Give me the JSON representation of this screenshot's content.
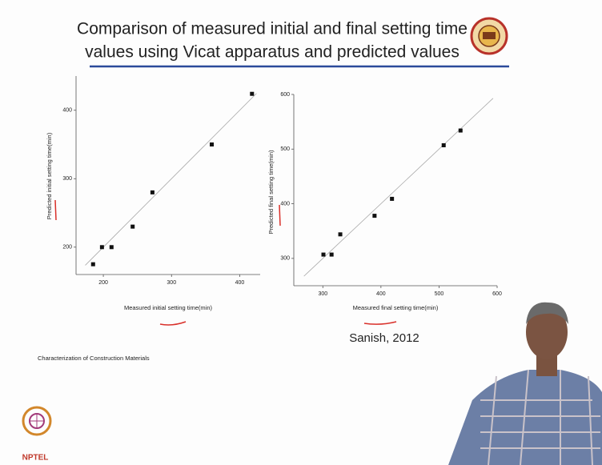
{
  "title": [
    "Comparison of measured initial and final setting time",
    "values using Vicat apparatus and predicted values"
  ],
  "footer": "Characterization of Construction Materials",
  "citation": "Sanish, 2012",
  "logo_text": "NPTEL",
  "chart_data": [
    {
      "type": "scatter",
      "x_label": "Measured initial setting time(min)",
      "y_label": "Predicted initial setting time(min)",
      "x": [
        185,
        198,
        212,
        243,
        272,
        359,
        418
      ],
      "values": [
        175,
        200,
        200,
        230,
        280,
        350,
        424
      ],
      "color": "#111111",
      "xlim": [
        160,
        430
      ],
      "ylim": [
        160,
        450
      ],
      "xticks": [
        200,
        300,
        400
      ],
      "yticks": [
        200,
        300,
        400
      ]
    },
    {
      "type": "scatter",
      "x_label": "Measured final setting time(min)",
      "y_label": "Predicted final setting time(min)",
      "x": [
        301,
        315,
        330,
        389,
        419,
        508,
        537
      ],
      "values": [
        307,
        307,
        344,
        378,
        409,
        507,
        534
      ],
      "color": "#111111",
      "xlim": [
        250,
        600
      ],
      "ylim": [
        250,
        600
      ],
      "xticks": [
        300,
        400,
        500,
        600
      ],
      "yticks": [
        300,
        400,
        500,
        600
      ]
    }
  ]
}
